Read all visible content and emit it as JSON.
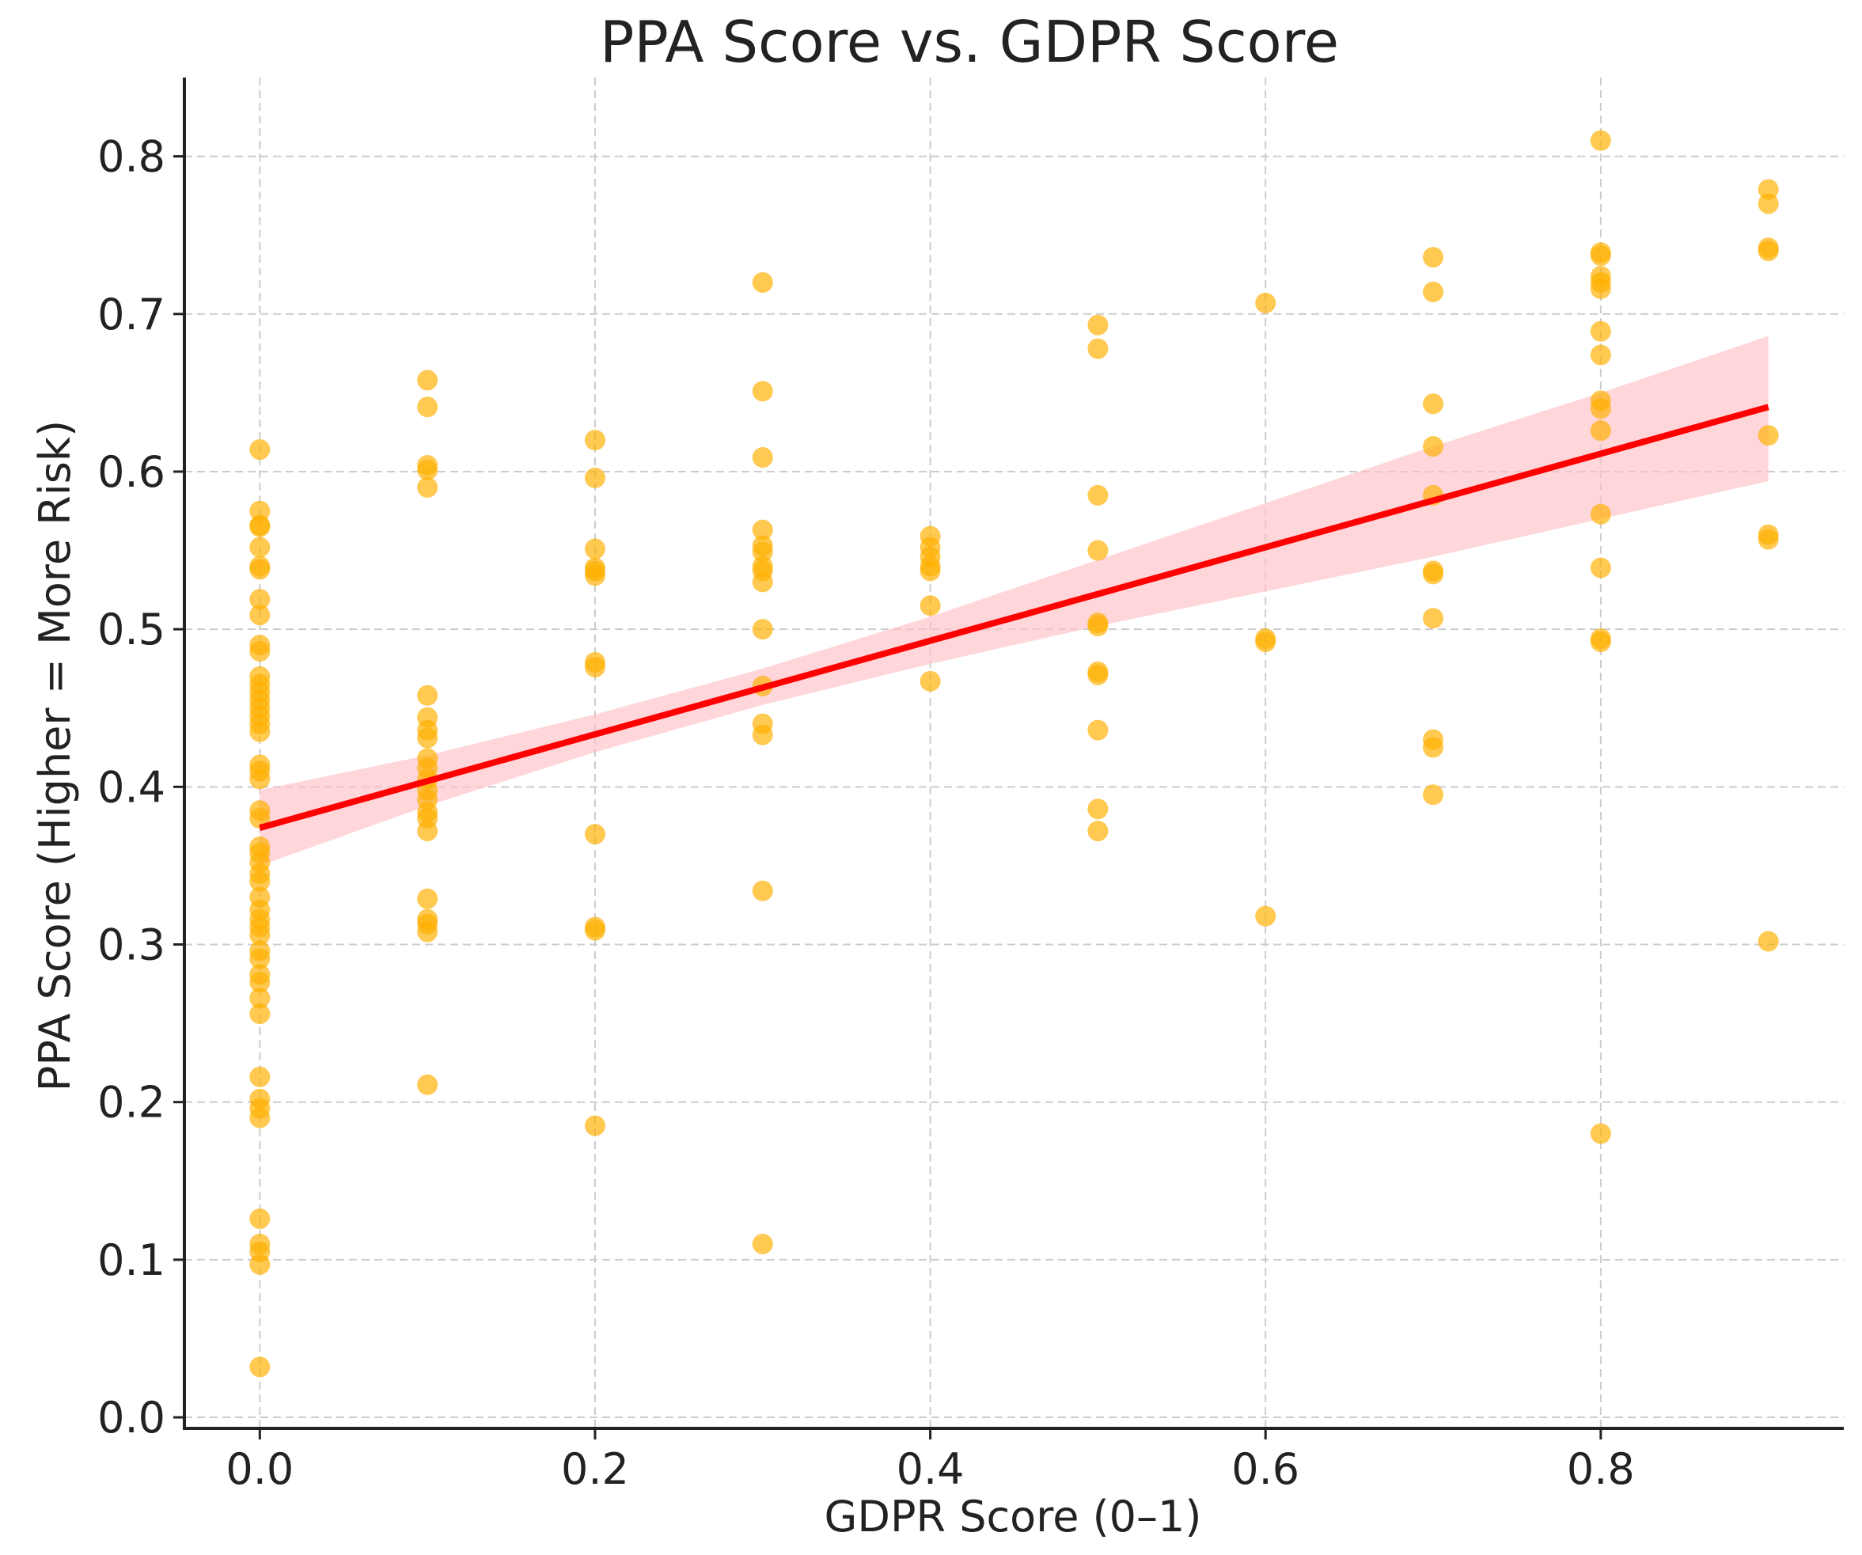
{
  "chart_data": {
    "type": "scatter",
    "title": "PPA Score vs. GDPR Score",
    "xlabel": "GDPR Score (0–1)",
    "ylabel": "PPA Score (Higher = More Risk)",
    "xlim": [
      -0.045,
      0.945
    ],
    "ylim": [
      -0.007,
      0.85
    ],
    "xticks": [
      0.0,
      0.2,
      0.4,
      0.6,
      0.8
    ],
    "xtick_labels": [
      "0.0",
      "0.2",
      "0.4",
      "0.6",
      "0.8"
    ],
    "yticks": [
      0.0,
      0.1,
      0.2,
      0.3,
      0.4,
      0.5,
      0.6,
      0.7,
      0.8
    ],
    "ytick_labels": [
      "0.0",
      "0.1",
      "0.2",
      "0.3",
      "0.4",
      "0.5",
      "0.6",
      "0.7",
      "0.8"
    ],
    "grid": true,
    "point_color": "#FFB000",
    "line_color": "#FF0000",
    "band_color": "#FFC0C6",
    "regression": {
      "x_start": 0.0,
      "x_end": 0.9,
      "y_start": 0.374,
      "y_end": 0.641
    },
    "confidence_band": {
      "x": [
        0.0,
        0.1,
        0.2,
        0.3,
        0.4,
        0.5,
        0.6,
        0.7,
        0.8,
        0.9
      ],
      "lower": [
        0.35,
        0.388,
        0.422,
        0.452,
        0.478,
        0.502,
        0.524,
        0.546,
        0.57,
        0.594
      ],
      "upper": [
        0.398,
        0.42,
        0.446,
        0.475,
        0.508,
        0.544,
        0.58,
        0.616,
        0.65,
        0.686
      ]
    },
    "points": [
      [
        0.0,
        0.614
      ],
      [
        0.0,
        0.575
      ],
      [
        0.0,
        0.566
      ],
      [
        0.0,
        0.565
      ],
      [
        0.0,
        0.552
      ],
      [
        0.0,
        0.54
      ],
      [
        0.0,
        0.538
      ],
      [
        0.0,
        0.519
      ],
      [
        0.0,
        0.509
      ],
      [
        0.0,
        0.49
      ],
      [
        0.0,
        0.486
      ],
      [
        0.0,
        0.47
      ],
      [
        0.0,
        0.465
      ],
      [
        0.0,
        0.46
      ],
      [
        0.0,
        0.455
      ],
      [
        0.0,
        0.45
      ],
      [
        0.0,
        0.445
      ],
      [
        0.0,
        0.44
      ],
      [
        0.0,
        0.435
      ],
      [
        0.0,
        0.414
      ],
      [
        0.0,
        0.41
      ],
      [
        0.0,
        0.405
      ],
      [
        0.0,
        0.385
      ],
      [
        0.0,
        0.38
      ],
      [
        0.0,
        0.362
      ],
      [
        0.0,
        0.358
      ],
      [
        0.0,
        0.352
      ],
      [
        0.0,
        0.345
      ],
      [
        0.0,
        0.34
      ],
      [
        0.0,
        0.33
      ],
      [
        0.0,
        0.322
      ],
      [
        0.0,
        0.316
      ],
      [
        0.0,
        0.311
      ],
      [
        0.0,
        0.306
      ],
      [
        0.0,
        0.296
      ],
      [
        0.0,
        0.291
      ],
      [
        0.0,
        0.281
      ],
      [
        0.0,
        0.276
      ],
      [
        0.0,
        0.266
      ],
      [
        0.0,
        0.256
      ],
      [
        0.0,
        0.216
      ],
      [
        0.0,
        0.202
      ],
      [
        0.0,
        0.196
      ],
      [
        0.0,
        0.19
      ],
      [
        0.0,
        0.126
      ],
      [
        0.0,
        0.11
      ],
      [
        0.0,
        0.105
      ],
      [
        0.0,
        0.097
      ],
      [
        0.0,
        0.032
      ],
      [
        0.1,
        0.658
      ],
      [
        0.1,
        0.641
      ],
      [
        0.1,
        0.604
      ],
      [
        0.1,
        0.601
      ],
      [
        0.1,
        0.59
      ],
      [
        0.1,
        0.458
      ],
      [
        0.1,
        0.444
      ],
      [
        0.1,
        0.436
      ],
      [
        0.1,
        0.431
      ],
      [
        0.1,
        0.418
      ],
      [
        0.1,
        0.412
      ],
      [
        0.1,
        0.405
      ],
      [
        0.1,
        0.398
      ],
      [
        0.1,
        0.392
      ],
      [
        0.1,
        0.384
      ],
      [
        0.1,
        0.38
      ],
      [
        0.1,
        0.372
      ],
      [
        0.1,
        0.329
      ],
      [
        0.1,
        0.316
      ],
      [
        0.1,
        0.313
      ],
      [
        0.1,
        0.308
      ],
      [
        0.1,
        0.211
      ],
      [
        0.2,
        0.62
      ],
      [
        0.2,
        0.596
      ],
      [
        0.2,
        0.551
      ],
      [
        0.2,
        0.539
      ],
      [
        0.2,
        0.537
      ],
      [
        0.2,
        0.534
      ],
      [
        0.2,
        0.479
      ],
      [
        0.2,
        0.476
      ],
      [
        0.2,
        0.37
      ],
      [
        0.2,
        0.311
      ],
      [
        0.2,
        0.309
      ],
      [
        0.2,
        0.185
      ],
      [
        0.3,
        0.72
      ],
      [
        0.3,
        0.651
      ],
      [
        0.3,
        0.609
      ],
      [
        0.3,
        0.563
      ],
      [
        0.3,
        0.553
      ],
      [
        0.3,
        0.549
      ],
      [
        0.3,
        0.54
      ],
      [
        0.3,
        0.537
      ],
      [
        0.3,
        0.53
      ],
      [
        0.3,
        0.5
      ],
      [
        0.3,
        0.464
      ],
      [
        0.3,
        0.44
      ],
      [
        0.3,
        0.433
      ],
      [
        0.3,
        0.334
      ],
      [
        0.3,
        0.11
      ],
      [
        0.4,
        0.559
      ],
      [
        0.4,
        0.552
      ],
      [
        0.4,
        0.546
      ],
      [
        0.4,
        0.54
      ],
      [
        0.4,
        0.537
      ],
      [
        0.4,
        0.515
      ],
      [
        0.4,
        0.467
      ],
      [
        0.5,
        0.693
      ],
      [
        0.5,
        0.678
      ],
      [
        0.5,
        0.585
      ],
      [
        0.5,
        0.55
      ],
      [
        0.5,
        0.504
      ],
      [
        0.5,
        0.502
      ],
      [
        0.5,
        0.473
      ],
      [
        0.5,
        0.471
      ],
      [
        0.5,
        0.436
      ],
      [
        0.5,
        0.386
      ],
      [
        0.5,
        0.372
      ],
      [
        0.6,
        0.707
      ],
      [
        0.6,
        0.494
      ],
      [
        0.6,
        0.492
      ],
      [
        0.6,
        0.318
      ],
      [
        0.7,
        0.736
      ],
      [
        0.7,
        0.714
      ],
      [
        0.7,
        0.643
      ],
      [
        0.7,
        0.616
      ],
      [
        0.7,
        0.585
      ],
      [
        0.7,
        0.537
      ],
      [
        0.7,
        0.535
      ],
      [
        0.7,
        0.507
      ],
      [
        0.7,
        0.43
      ],
      [
        0.7,
        0.425
      ],
      [
        0.7,
        0.395
      ],
      [
        0.8,
        0.81
      ],
      [
        0.8,
        0.739
      ],
      [
        0.8,
        0.737
      ],
      [
        0.8,
        0.724
      ],
      [
        0.8,
        0.72
      ],
      [
        0.8,
        0.716
      ],
      [
        0.8,
        0.689
      ],
      [
        0.8,
        0.674
      ],
      [
        0.8,
        0.645
      ],
      [
        0.8,
        0.64
      ],
      [
        0.8,
        0.626
      ],
      [
        0.8,
        0.573
      ],
      [
        0.8,
        0.539
      ],
      [
        0.8,
        0.494
      ],
      [
        0.8,
        0.492
      ],
      [
        0.8,
        0.18
      ],
      [
        0.9,
        0.779
      ],
      [
        0.9,
        0.77
      ],
      [
        0.9,
        0.742
      ],
      [
        0.9,
        0.74
      ],
      [
        0.9,
        0.623
      ],
      [
        0.9,
        0.56
      ],
      [
        0.9,
        0.557
      ],
      [
        0.9,
        0.302
      ]
    ]
  }
}
